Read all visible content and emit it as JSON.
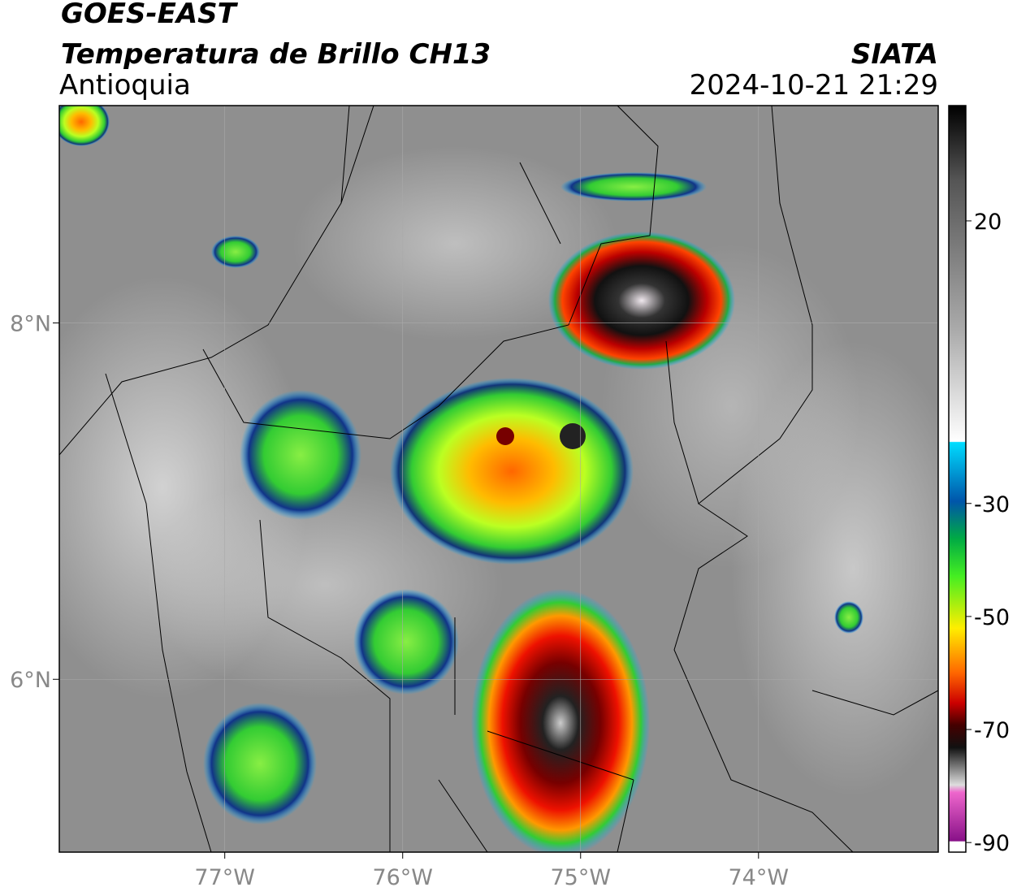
{
  "header": {
    "satellite": "GOES-EAST",
    "product": "Temperatura de Brillo CH13",
    "region": "Antioquia",
    "source": "SIATA",
    "datetime": "2024-10-21 21:29"
  },
  "map": {
    "xlim": [
      -77.93,
      -72.99
    ],
    "ylim": [
      5.03,
      9.22
    ],
    "xticks": [
      {
        "value": -77,
        "label": "77°W"
      },
      {
        "value": -76,
        "label": "76°W"
      },
      {
        "value": -75,
        "label": "75°W"
      },
      {
        "value": -74,
        "label": "74°W"
      }
    ],
    "yticks": [
      {
        "value": 8,
        "label": "8°N"
      },
      {
        "value": 6,
        "label": "6°N"
      }
    ]
  },
  "colorbar": {
    "lim": [
      -91.7,
      40.4
    ],
    "ticks": [
      20,
      -30,
      -50,
      -70,
      -90
    ]
  }
}
